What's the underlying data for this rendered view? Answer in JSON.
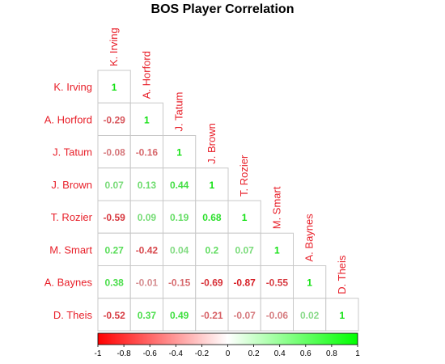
{
  "chart_data": {
    "type": "heatmap",
    "title": "BOS Player Correlation",
    "layout": "lower-triangle",
    "players": [
      "K. Irving",
      "A. Horford",
      "J. Tatum",
      "J. Brown",
      "T. Rozier",
      "M. Smart",
      "A. Baynes",
      "D. Theis"
    ],
    "matrix": [
      [
        1
      ],
      [
        -0.29,
        1
      ],
      [
        -0.08,
        -0.16,
        1
      ],
      [
        0.07,
        0.13,
        0.44,
        1
      ],
      [
        -0.59,
        0.09,
        0.19,
        0.68,
        1
      ],
      [
        0.27,
        -0.42,
        0.04,
        0.2,
        0.07,
        1
      ],
      [
        0.38,
        -0.01,
        -0.15,
        -0.69,
        -0.87,
        -0.55,
        1
      ],
      [
        -0.52,
        0.37,
        0.49,
        -0.21,
        -0.07,
        -0.06,
        0.02,
        1
      ]
    ],
    "value_labels": [
      [
        "1"
      ],
      [
        "-0.29",
        "1"
      ],
      [
        "-0.08",
        "-0.16",
        "1"
      ],
      [
        "0.07",
        "0.13",
        "0.44",
        "1"
      ],
      [
        "-0.59",
        "0.09",
        "0.19",
        "0.68",
        "1"
      ],
      [
        "0.27",
        "-0.42",
        "0.04",
        "0.2",
        "0.07",
        "1"
      ],
      [
        "0.38",
        "-0.01",
        "-0.15",
        "-0.69",
        "-0.87",
        "-0.55",
        "1"
      ],
      [
        "-0.52",
        "0.37",
        "0.49",
        "-0.21",
        "-0.07",
        "-0.06",
        "0.02",
        "1"
      ]
    ],
    "colorbar": {
      "range": [
        -1,
        1
      ],
      "ticks": [
        "-1",
        "-0.8",
        "-0.6",
        "-0.4",
        "-0.2",
        "0",
        "0.2",
        "0.4",
        "0.6",
        "0.8",
        "1"
      ],
      "low_color": "#ff0000",
      "mid_color": "#ffffff",
      "high_color": "#00ff00"
    },
    "label_color": "#e8202a",
    "grid_color": "#c8c8c8"
  }
}
